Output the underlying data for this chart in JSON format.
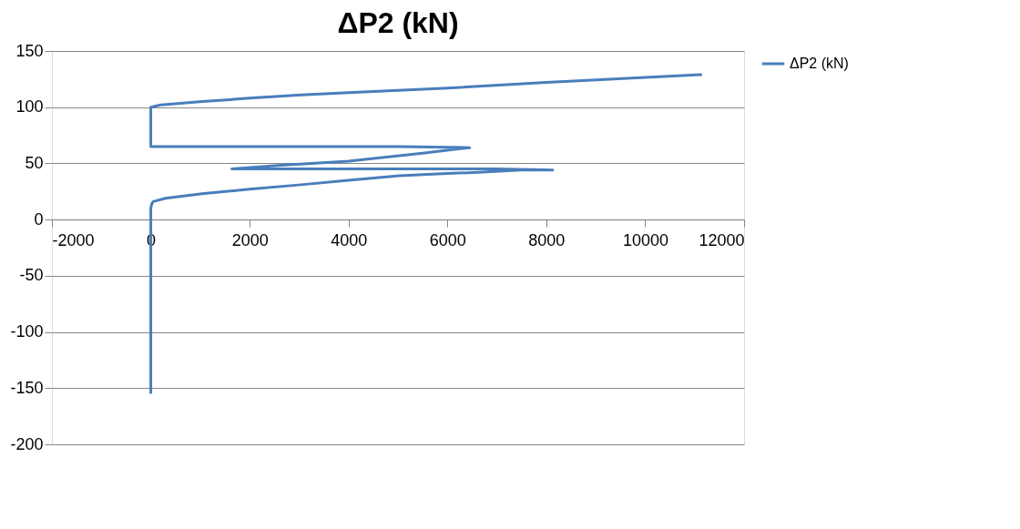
{
  "chart_data": {
    "type": "line",
    "title": "ΔP2 (kN)",
    "series": [
      {
        "name": "ΔP2 (kN)",
        "color": "#4a7ebb",
        "x": [
          0,
          0,
          20,
          50,
          300,
          1040,
          2000,
          3040,
          4000,
          5030,
          6000,
          6620,
          7500,
          8130,
          7000,
          4000,
          1640,
          2500,
          4000,
          5500,
          6450,
          5000,
          2000,
          0,
          0,
          0,
          200,
          1040,
          2000,
          3040,
          4000,
          6000,
          8000,
          11150
        ],
        "values": [
          -155,
          10,
          14,
          16,
          19,
          23,
          27,
          31,
          35,
          39,
          41,
          42,
          44,
          44,
          45,
          45,
          45,
          48,
          52,
          59,
          64,
          65,
          65,
          65,
          99,
          100,
          102,
          105,
          108,
          111,
          113,
          117,
          122,
          129
        ]
      }
    ],
    "xlim": [
      -2000,
      12000
    ],
    "xticks": [
      -2000,
      0,
      2000,
      4000,
      6000,
      8000,
      10000,
      12000
    ],
    "ylim": [
      -200,
      150
    ],
    "yticks": [
      -200,
      -150,
      -100,
      -50,
      0,
      50,
      100,
      150
    ],
    "grid": "y",
    "legend": "right",
    "line_style": "solid",
    "marker": "none"
  }
}
